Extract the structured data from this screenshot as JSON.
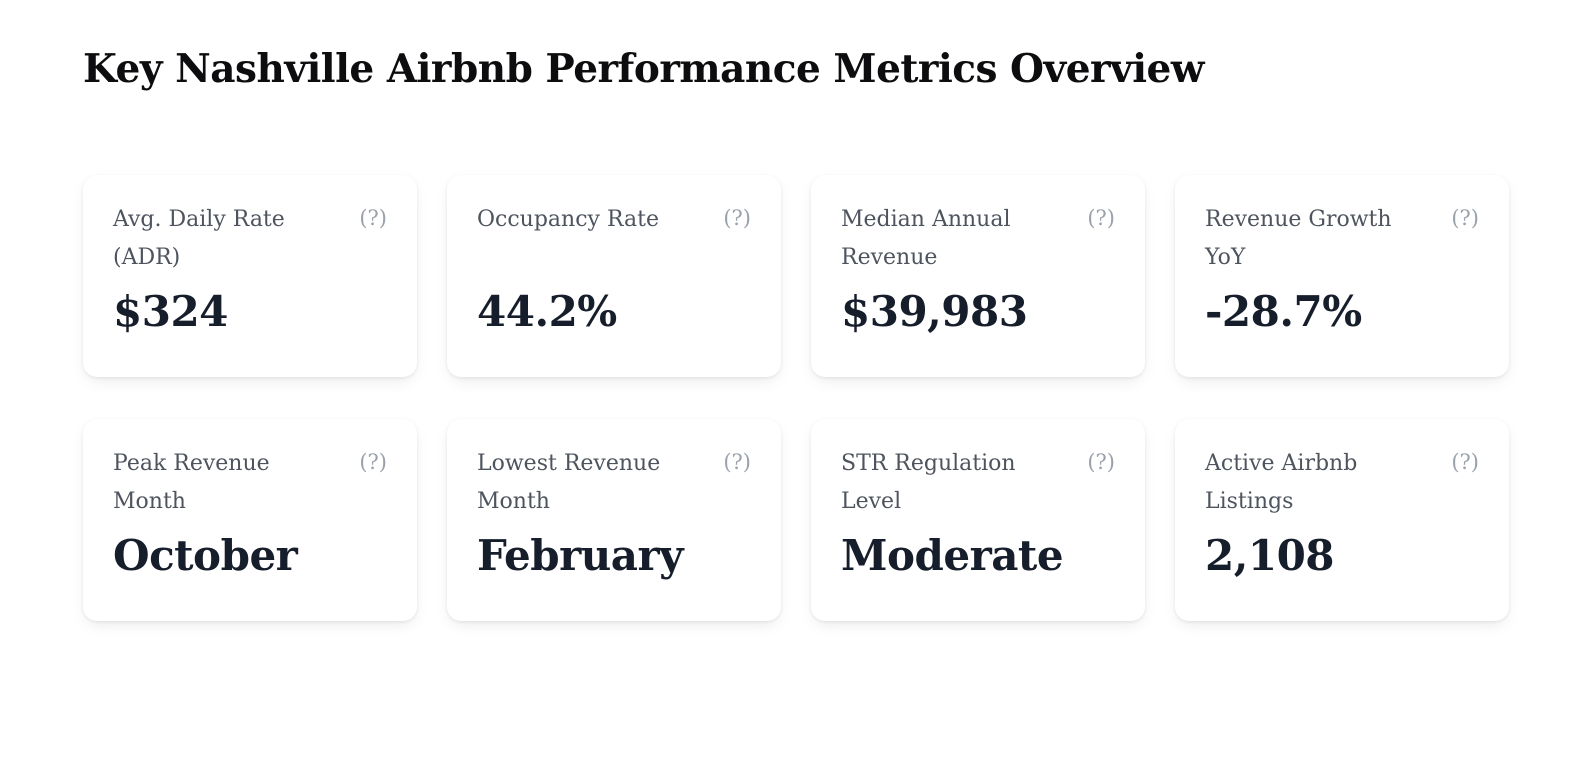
{
  "header": {
    "title": "Key Nashville Airbnb Performance Metrics Overview"
  },
  "help_icon_glyph": "(?)",
  "colors": {
    "page_background": "#ffffff",
    "card_background": "#ffffff",
    "title_text": "#0d0d10",
    "label_text": "#4e545e",
    "value_text": "#171e2b",
    "help_icon": "#9aa1ab"
  },
  "cards": [
    {
      "label": "Avg. Daily Rate (ADR)",
      "value": "$324"
    },
    {
      "label": "Occupancy Rate",
      "value": "44.2%"
    },
    {
      "label": "Median Annual Revenue",
      "value": "$39,983"
    },
    {
      "label": "Revenue Growth YoY",
      "value": "-28.7%"
    },
    {
      "label": "Peak Revenue Month",
      "value": "October"
    },
    {
      "label": "Lowest Revenue Month",
      "value": "February"
    },
    {
      "label": "STR Regulation Level",
      "value": "Moderate"
    },
    {
      "label": "Active Airbnb Listings",
      "value": "2,108"
    }
  ]
}
